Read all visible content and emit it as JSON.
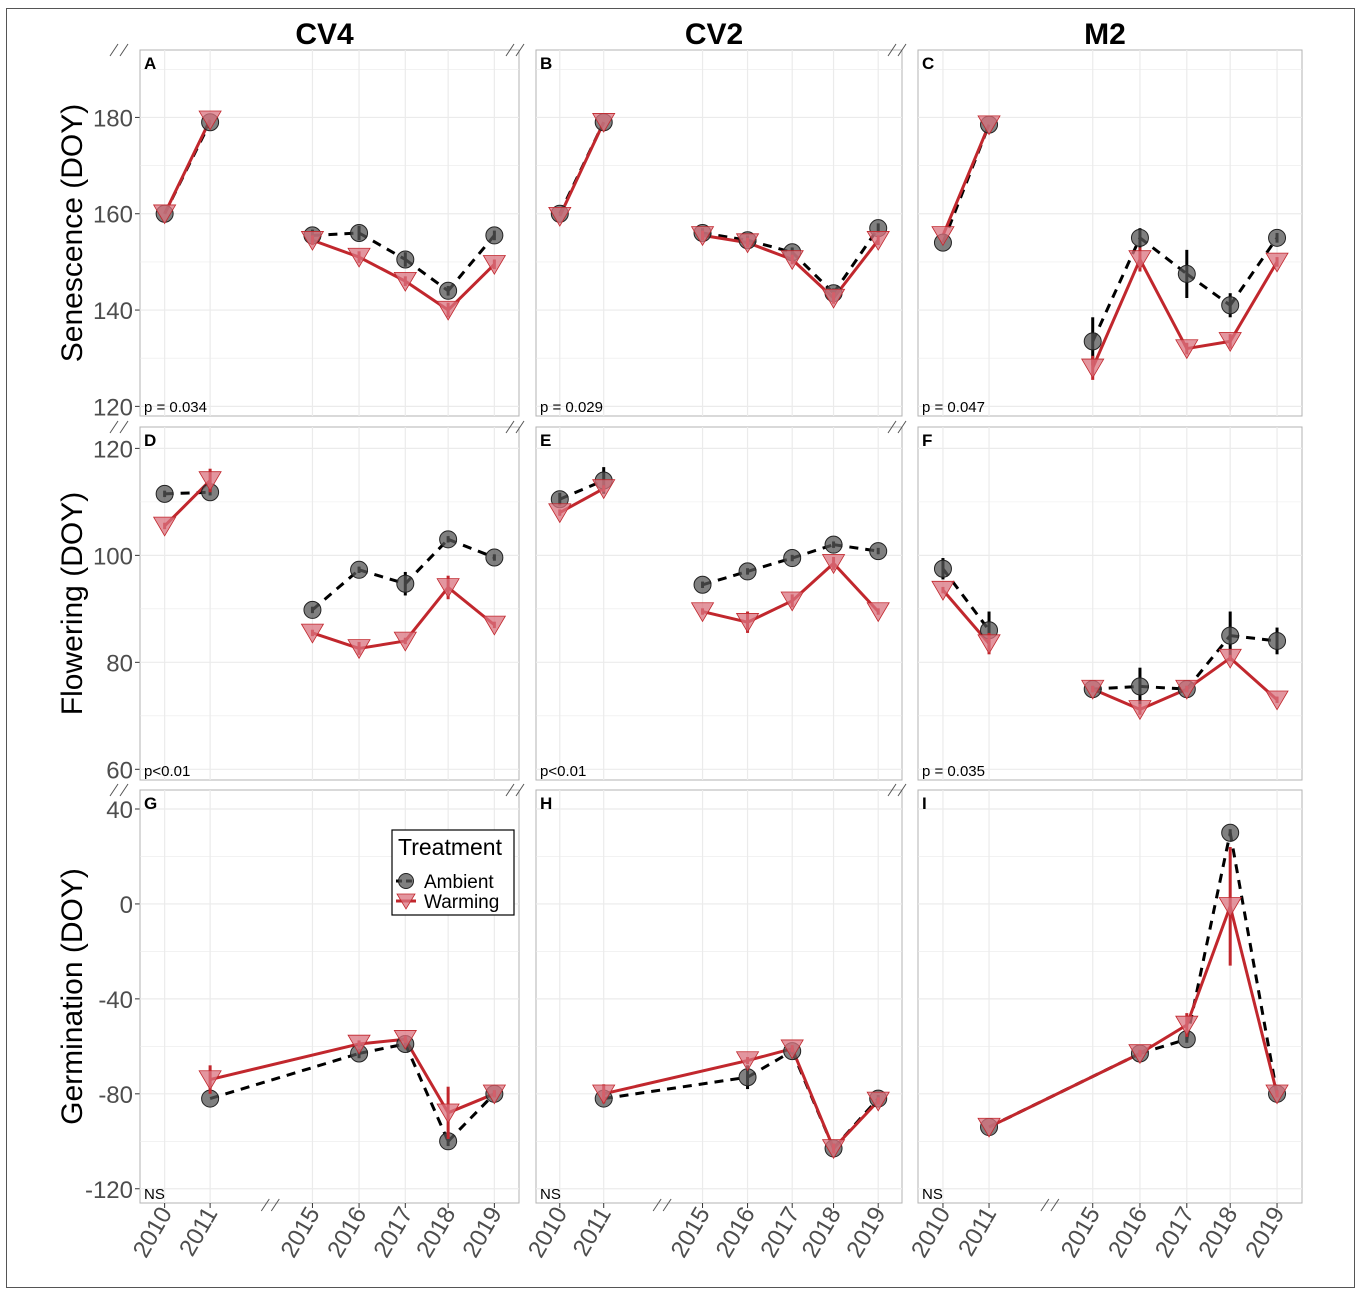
{
  "figure": {
    "colors": {
      "ambient": "#555555",
      "warming": "#d9737f",
      "warming_line": "#c1272d",
      "ambient_line": "#000000",
      "grid": "#ebebeb",
      "panel_border": "#b3b3b3",
      "background": "#ffffff"
    },
    "columns": [
      "CV4",
      "CV2",
      "M2"
    ],
    "rows": [
      {
        "ylabel": "Senescence (DOY)",
        "ylim": [
          118,
          194
        ],
        "ticks": [
          120,
          140,
          160,
          180
        ]
      },
      {
        "ylabel": "Flowering (DOY)",
        "ylim": [
          58,
          124
        ],
        "ticks": [
          60,
          80,
          100,
          120
        ]
      },
      {
        "ylabel": "Germination (DOY)",
        "ylim": [
          -126,
          48
        ],
        "ticks": [
          -120,
          -80,
          -40,
          0,
          40
        ]
      }
    ],
    "x_ticks": [
      "2010",
      "2011",
      "2015",
      "2016",
      "2017",
      "2018",
      "2019"
    ],
    "legend": {
      "title": "Treatment",
      "items": [
        "Ambient",
        "Warming"
      ],
      "placement": "inside panel G, top-right"
    }
  },
  "chart_data": [
    {
      "type": "line",
      "panel": "A",
      "p": "p = 0.034",
      "categories": [
        "2010",
        "2011",
        "2015",
        "2016",
        "2017",
        "2018",
        "2019"
      ],
      "series": [
        {
          "name": "Ambient",
          "values": [
            160,
            179,
            155.5,
            156,
            150.5,
            144,
            155.5
          ],
          "err": [
            0,
            0,
            1.2,
            1.5,
            1.5,
            1,
            1
          ]
        },
        {
          "name": "Warming",
          "values": [
            160,
            179.5,
            154.5,
            151,
            146,
            140,
            149.5
          ],
          "err": [
            0,
            0,
            1,
            1.2,
            1,
            1.5,
            1
          ]
        }
      ]
    },
    {
      "type": "line",
      "panel": "B",
      "p": "p = 0.029",
      "categories": [
        "2010",
        "2011",
        "2015",
        "2016",
        "2017",
        "2018",
        "2019"
      ],
      "series": [
        {
          "name": "Ambient",
          "values": [
            160,
            179,
            156,
            154.5,
            152,
            143.5,
            157
          ],
          "err": [
            0,
            0,
            1,
            1,
            1,
            1,
            1
          ]
        },
        {
          "name": "Warming",
          "values": [
            159.5,
            179,
            155.5,
            154,
            150.5,
            142.5,
            154.5
          ],
          "err": [
            0,
            0,
            1,
            1,
            1,
            1.2,
            1
          ]
        }
      ]
    },
    {
      "type": "line",
      "panel": "C",
      "p": "p = 0.047",
      "categories": [
        "2010",
        "2011",
        "2015",
        "2016",
        "2017",
        "2018",
        "2019"
      ],
      "series": [
        {
          "name": "Ambient",
          "values": [
            154,
            178.5,
            133.5,
            155,
            147.5,
            141,
            155
          ],
          "err": [
            0,
            0,
            5,
            2,
            5,
            2.5,
            1
          ]
        },
        {
          "name": "Warming",
          "values": [
            155.5,
            178.5,
            128,
            150.5,
            132,
            133.5,
            150
          ],
          "err": [
            0,
            0,
            2.5,
            2.5,
            1.2,
            1.5,
            1
          ]
        }
      ]
    },
    {
      "type": "line",
      "panel": "D",
      "p": "p<0.01",
      "categories": [
        "2010",
        "2011",
        "2015",
        "2016",
        "2017",
        "2018",
        "2019"
      ],
      "series": [
        {
          "name": "Ambient",
          "values": [
            111.5,
            111.8,
            89.8,
            97.3,
            94.7,
            103,
            99.6
          ],
          "err": [
            0.6,
            0.6,
            0.6,
            0.6,
            2.2,
            0.6,
            0.6
          ]
        },
        {
          "name": "Warming",
          "values": [
            105.5,
            114,
            85.5,
            82.6,
            84,
            94,
            87
          ],
          "err": [
            0.6,
            2.2,
            0.6,
            1.2,
            0.6,
            2.2,
            0.6
          ]
        }
      ]
    },
    {
      "type": "line",
      "panel": "E",
      "p": "p<0.01",
      "categories": [
        "2010",
        "2011",
        "2015",
        "2016",
        "2017",
        "2018",
        "2019"
      ],
      "series": [
        {
          "name": "Ambient",
          "values": [
            110.5,
            114,
            94.5,
            97,
            99.5,
            102,
            100.8
          ],
          "err": [
            1.2,
            2.5,
            0.6,
            0.6,
            0.6,
            0.6,
            0.6
          ]
        },
        {
          "name": "Warming",
          "values": [
            108,
            112.5,
            89.5,
            87.5,
            91.5,
            98.5,
            89.5
          ],
          "err": [
            0.6,
            0.6,
            0.6,
            2,
            1.2,
            1.2,
            0.6
          ]
        }
      ]
    },
    {
      "type": "line",
      "panel": "F",
      "p": "p = 0.035",
      "categories": [
        "2010",
        "2011",
        "2015",
        "2016",
        "2017",
        "2018",
        "2019"
      ],
      "series": [
        {
          "name": "Ambient",
          "values": [
            97.5,
            86,
            75,
            75.5,
            75,
            85,
            84
          ],
          "err": [
            2,
            3.5,
            0.6,
            3.5,
            0.6,
            4.5,
            2.5
          ]
        },
        {
          "name": "Warming",
          "values": [
            93.5,
            83.5,
            75,
            71.2,
            75,
            80.8,
            73
          ],
          "err": [
            0.6,
            2,
            0.6,
            1,
            0.6,
            0.6,
            0.6
          ]
        }
      ]
    },
    {
      "type": "line",
      "panel": "G",
      "p": "NS",
      "categories": [
        "2010",
        "2011",
        "2015",
        "2016",
        "2017",
        "2018",
        "2019"
      ],
      "series": [
        {
          "name": "Ambient",
          "values": [
            null,
            -82,
            null,
            -63,
            -59,
            -100,
            -80
          ],
          "err": [
            0,
            0,
            0,
            2,
            1.5,
            2,
            1.5
          ]
        },
        {
          "name": "Warming",
          "values": [
            null,
            -74,
            null,
            -59,
            -57,
            -88,
            -80
          ],
          "err": [
            0,
            6,
            0,
            1.5,
            1.5,
            11,
            1.5
          ]
        }
      ]
    },
    {
      "type": "line",
      "panel": "H",
      "p": "NS",
      "categories": [
        "2010",
        "2011",
        "2015",
        "2016",
        "2017",
        "2018",
        "2019"
      ],
      "series": [
        {
          "name": "Ambient",
          "values": [
            null,
            -82,
            null,
            -73,
            -62,
            -103,
            -82
          ],
          "err": [
            0,
            0,
            0,
            5,
            1.5,
            2,
            1.5
          ]
        },
        {
          "name": "Warming",
          "values": [
            null,
            -80,
            null,
            -66,
            -61,
            -103,
            -83
          ],
          "err": [
            0,
            4,
            0,
            1.5,
            1.5,
            2,
            1.5
          ]
        }
      ]
    },
    {
      "type": "line",
      "panel": "I",
      "p": "NS",
      "categories": [
        "2010",
        "2011",
        "2015",
        "2016",
        "2017",
        "2018",
        "2019"
      ],
      "series": [
        {
          "name": "Ambient",
          "values": [
            null,
            -94,
            null,
            -63,
            -57,
            30,
            -80
          ],
          "err": [
            0,
            0,
            0,
            1.5,
            1.5,
            1.5,
            1.5
          ]
        },
        {
          "name": "Warming",
          "values": [
            null,
            -94,
            null,
            -63,
            -51,
            -1,
            -80
          ],
          "err": [
            0,
            0,
            0,
            1.5,
            5,
            25,
            1.5
          ]
        }
      ]
    }
  ]
}
